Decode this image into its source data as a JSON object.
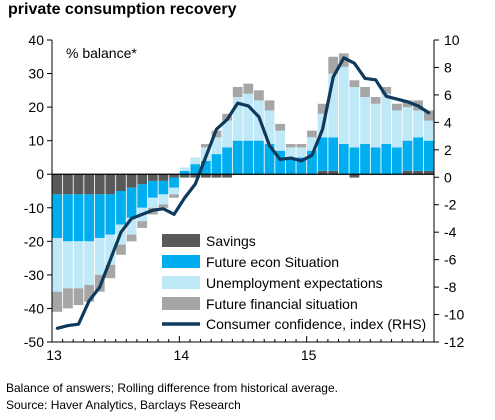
{
  "chart_data": {
    "type": "bar",
    "title": "private consumption recovery",
    "ylabel": "% balance*",
    "ylim": [
      -50,
      40
    ],
    "y2lim": [
      -12,
      10
    ],
    "yticks": [
      40,
      30,
      20,
      10,
      0,
      -10,
      -20,
      -30,
      -40,
      -50
    ],
    "y2ticks": [
      10,
      8,
      6,
      4,
      2,
      0,
      -2,
      -4,
      -6,
      -8,
      -10,
      -12
    ],
    "x_labels": [
      {
        "label": "13",
        "index": 0
      },
      {
        "label": "14",
        "index": 12
      },
      {
        "label": "15",
        "index": 24
      }
    ],
    "n_months": 36,
    "grid": false,
    "legend_position": "bottom-center",
    "series": [
      {
        "name": "Savings",
        "color": "#595959",
        "values": [
          -6,
          -6,
          -6,
          -6,
          -6,
          -6,
          -5,
          -4,
          -3,
          -2,
          -2,
          -1,
          -1,
          -1,
          -1,
          -1,
          -1,
          0,
          0,
          0,
          0,
          0,
          0,
          0,
          0,
          1,
          1,
          0,
          -1,
          0,
          0,
          0,
          0,
          1,
          1,
          1
        ]
      },
      {
        "name": "Future econ Situation",
        "color": "#00aeef",
        "values": [
          -13,
          -14,
          -14,
          -14,
          -13,
          -12,
          -10,
          -9,
          -7,
          -5,
          -4,
          -3,
          1,
          3,
          4,
          6,
          8,
          10,
          10,
          10,
          9,
          7,
          5,
          5,
          7,
          10,
          10,
          9,
          8,
          9,
          8,
          9,
          8,
          9,
          10,
          9
        ]
      },
      {
        "name": "Unemployment expectations",
        "color": "#bfe9f7",
        "values": [
          -16,
          -14,
          -14,
          -13,
          -11,
          -9,
          -6,
          -5,
          -4,
          -3,
          -3,
          -2,
          1,
          2,
          4,
          5,
          8,
          13,
          14,
          12,
          10,
          6,
          3,
          3,
          4,
          7,
          19,
          23,
          18,
          14,
          13,
          15,
          11,
          10,
          8,
          6
        ]
      },
      {
        "name": "Future financial situation",
        "color": "#a6a6a6",
        "values": [
          -6,
          -6,
          -5,
          -5,
          -5,
          -4,
          -3,
          -2,
          -2,
          -2,
          -1,
          -1,
          0,
          0,
          1,
          2,
          2,
          3,
          3,
          3,
          3,
          2,
          1,
          1,
          2,
          3,
          5,
          4,
          2,
          3,
          2,
          2,
          2,
          2,
          3,
          3
        ]
      }
    ],
    "line_series": {
      "name": "Consumer confidence, index (RHS)",
      "color": "#0f3a5c",
      "axis": "right",
      "values": [
        -11,
        -10.8,
        -10.7,
        -9,
        -8,
        -6,
        -4,
        -3,
        -2.7,
        -2.4,
        -2.3,
        -2.7,
        -1.5,
        -0.5,
        1.5,
        3.5,
        4.2,
        5.4,
        5.2,
        4.4,
        2.3,
        1.3,
        1.4,
        1.2,
        1.6,
        3.5,
        7.3,
        8.7,
        8.3,
        7.2,
        7.1,
        5.9,
        5.7,
        5.5,
        5.2,
        4.7
      ]
    }
  },
  "notes": {
    "line1": "Balance of answers; Rolling difference from historical average.",
    "line2": "Source: Haver Analytics, Barclays Research"
  }
}
